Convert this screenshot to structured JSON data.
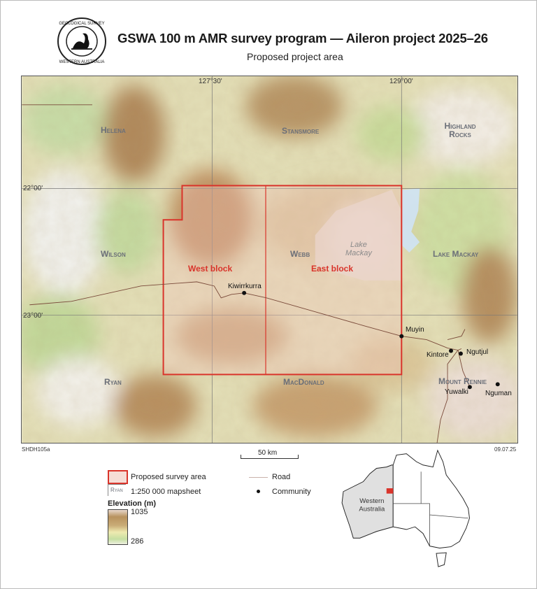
{
  "header": {
    "title": "GSWA 100 m AMR survey program — Aileron project 2025–26",
    "subtitle": "Proposed project area",
    "logo_text": "GEOLOGICAL SURVEY · WESTERN AUSTRALIA"
  },
  "map": {
    "graticule": {
      "longitudes": [
        "127°30'",
        "129°00'"
      ],
      "latitudes": [
        "22°00'",
        "23°00'"
      ]
    },
    "mapsheets": [
      "Helena",
      "Stansmore",
      "Highland Rocks",
      "Wilson",
      "Webb",
      "Lake Mackay",
      "Ryan",
      "MacDonald",
      "Mount Rennie"
    ],
    "blocks": [
      "West block",
      "East block"
    ],
    "lake_label": [
      "Lake",
      "Mackay"
    ],
    "communities": [
      "Kiwirrkurra",
      "Muyin",
      "Kintore",
      "Ngutjul",
      "Yuwalki",
      "Nguman"
    ],
    "colors": {
      "survey_area": "#d9342b",
      "road": "#7a4a3a",
      "sheet_label": "#6b6f78"
    }
  },
  "footer": {
    "map_code": "SHDH105a",
    "date": "09.07.25",
    "scale_label": "50 km"
  },
  "legend": {
    "survey_area": "Proposed survey area",
    "mapsheet_sample": "Ryan",
    "mapsheet": "1:250 000 mapsheet",
    "road": "Road",
    "community": "Community",
    "elevation_title": "Elevation (m)",
    "elevation_max": "1035",
    "elevation_min": "286"
  },
  "inset": {
    "state_label": [
      "Western",
      "Australia"
    ]
  }
}
